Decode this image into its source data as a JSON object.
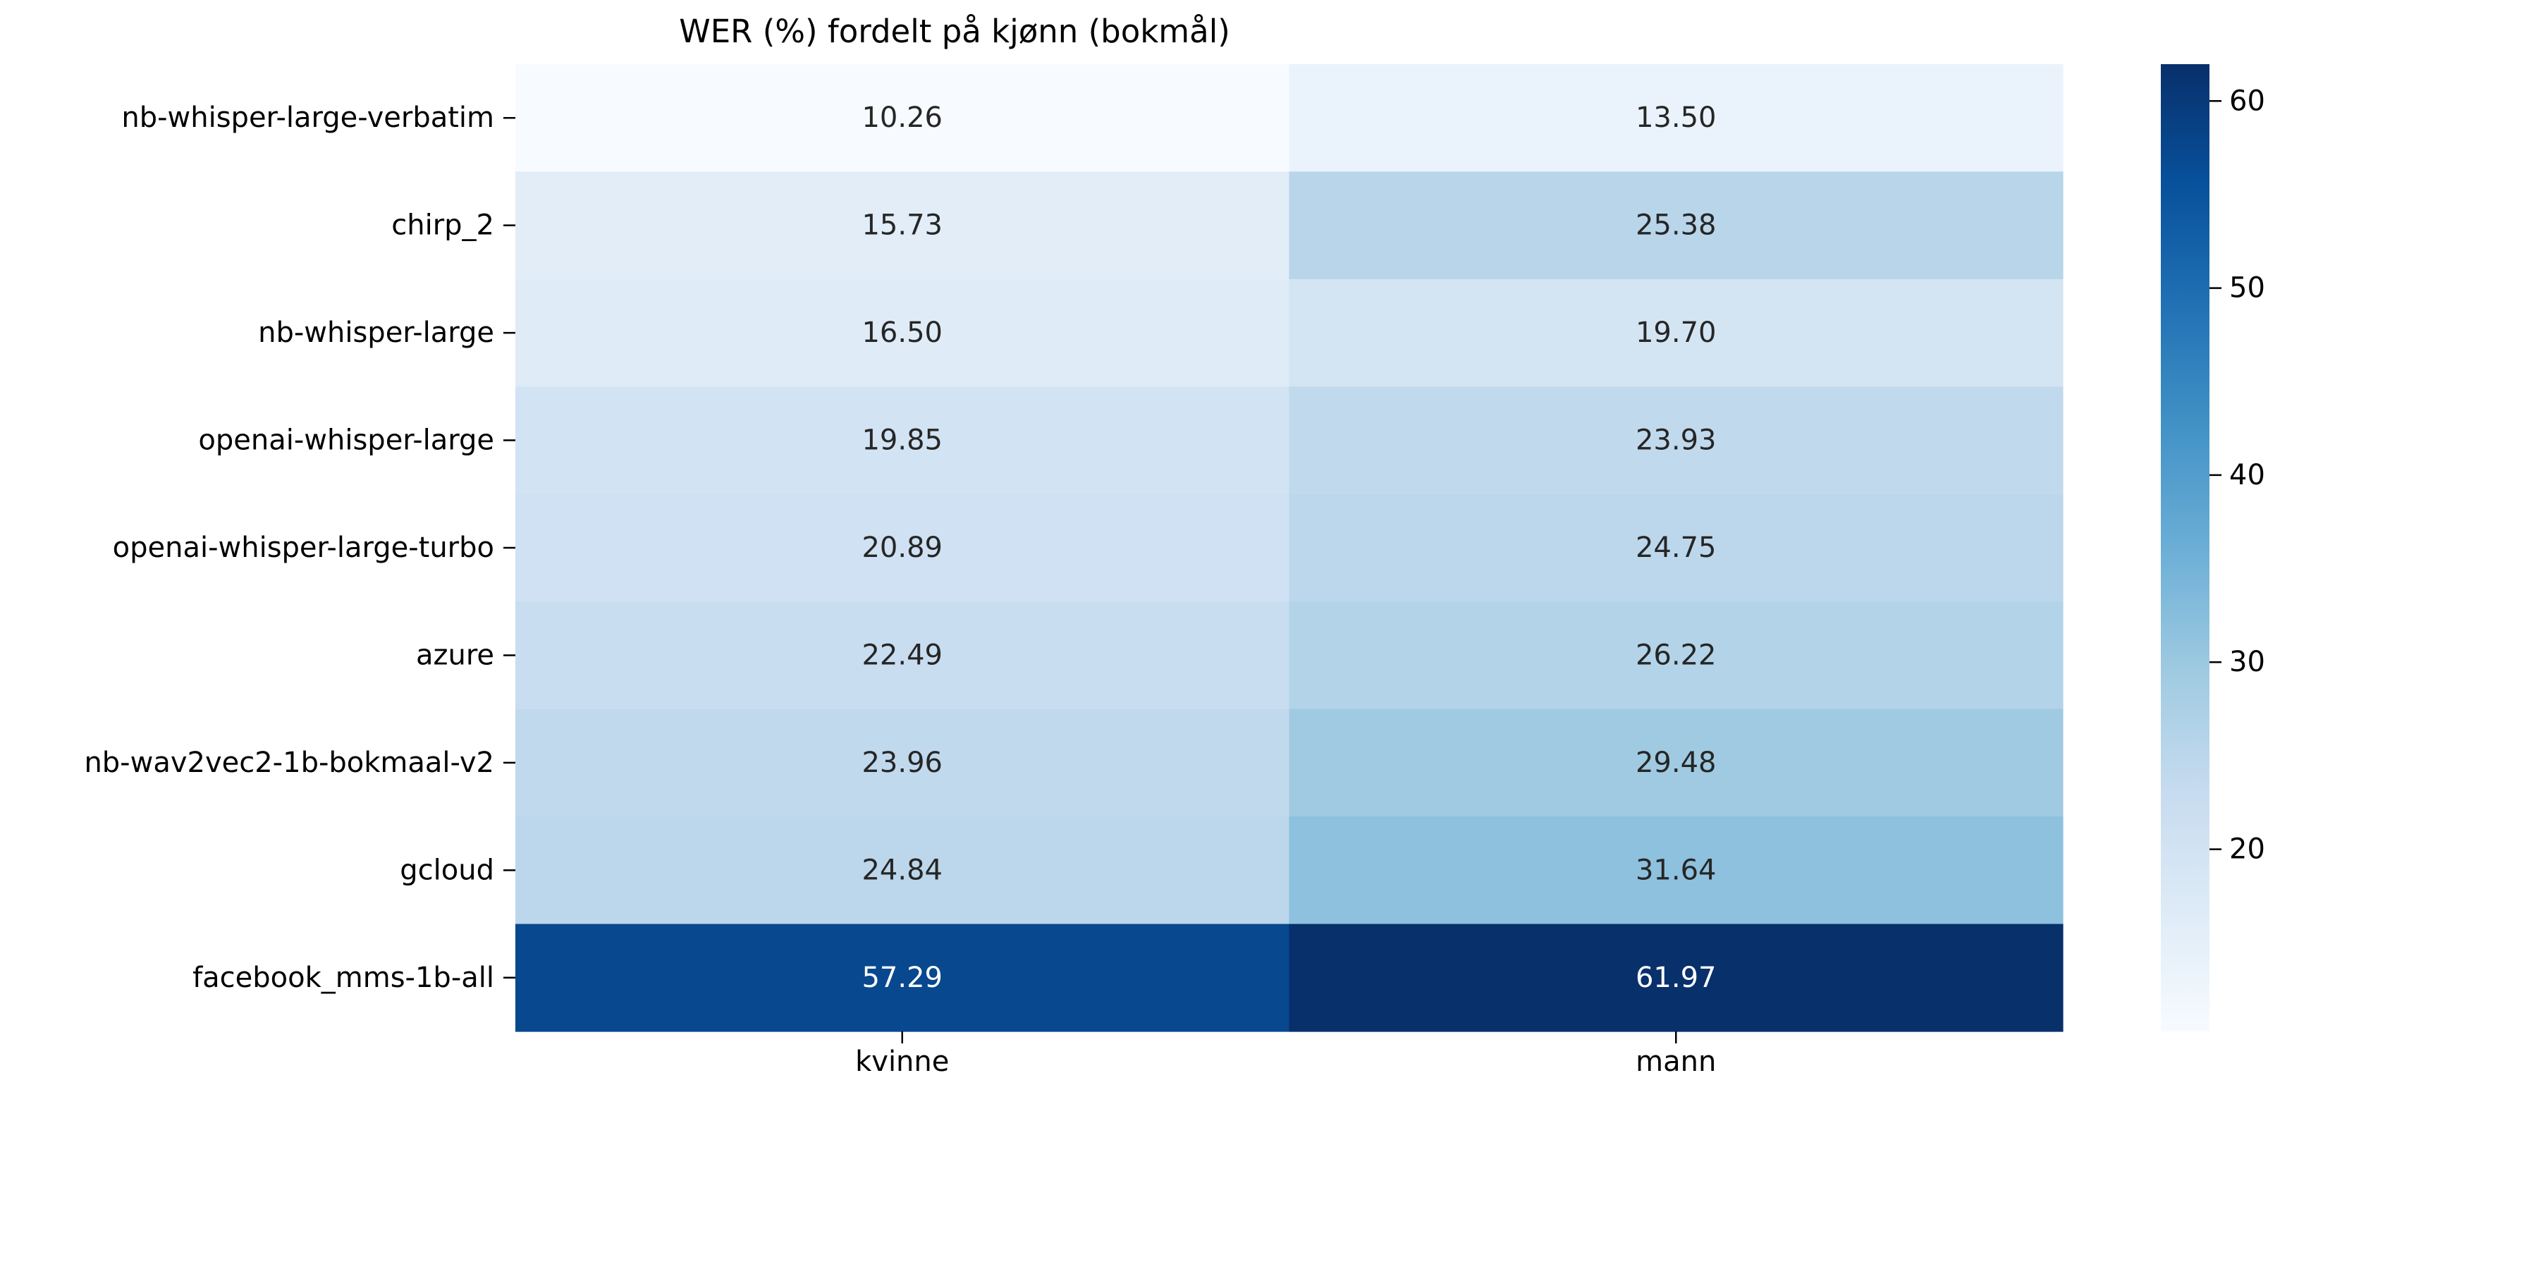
{
  "chart_data": {
    "type": "heatmap",
    "title": "WER (%) fordelt på kjønn (bokmål)",
    "xlabel": "",
    "ylabel": "",
    "columns": [
      "kvinne",
      "mann"
    ],
    "rows": [
      "nb-whisper-large-verbatim",
      "chirp_2",
      "nb-whisper-large",
      "openai-whisper-large",
      "openai-whisper-large-turbo",
      "azure",
      "nb-wav2vec2-1b-bokmaal-v2",
      "gcloud",
      "facebook_mms-1b-all"
    ],
    "values": [
      [
        10.26,
        13.5
      ],
      [
        15.73,
        25.38
      ],
      [
        16.5,
        19.7
      ],
      [
        19.85,
        23.93
      ],
      [
        20.89,
        24.75
      ],
      [
        22.49,
        26.22
      ],
      [
        23.96,
        29.48
      ],
      [
        24.84,
        31.64
      ],
      [
        57.29,
        61.97
      ]
    ],
    "value_labels": [
      [
        "10.26",
        "13.50"
      ],
      [
        "15.73",
        "25.38"
      ],
      [
        "16.50",
        "19.70"
      ],
      [
        "19.85",
        "23.93"
      ],
      [
        "20.89",
        "24.75"
      ],
      [
        "22.49",
        "26.22"
      ],
      [
        "23.96",
        "29.48"
      ],
      [
        "24.84",
        "31.64"
      ],
      [
        "57.29",
        "61.97"
      ]
    ],
    "colorbar": {
      "cmap": "Blues",
      "vmin": 10.26,
      "vmax": 61.97,
      "ticks": [
        20,
        30,
        40,
        50,
        60
      ],
      "tick_labels": [
        "20",
        "30",
        "40",
        "50",
        "60"
      ],
      "position": "right"
    },
    "colors": {
      "low": "#f7fbff",
      "high": "#08306b",
      "text_dark": "#262626",
      "text_light": "#ffffff"
    }
  }
}
